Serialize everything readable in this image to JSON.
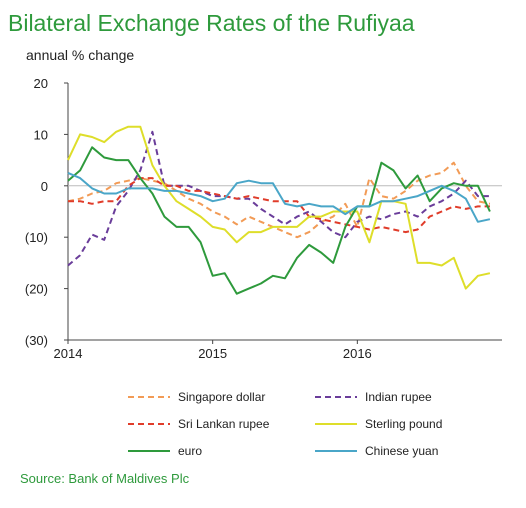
{
  "chart_data": {
    "type": "line",
    "title": "Bilateral Exchange Rates of the Rufiyaa",
    "ylabel": "annual % change",
    "ylim": [
      -30,
      20
    ],
    "yticks": [
      20,
      10,
      0,
      -10,
      -20,
      -30
    ],
    "ytick_labels": [
      "20",
      "10",
      "0",
      "(10)",
      "(20)",
      "(30)"
    ],
    "xlim": [
      2014,
      2017
    ],
    "xticks": [
      2014,
      2015,
      2016
    ],
    "xtick_labels": [
      "2014",
      "2015",
      "2016"
    ],
    "legend_position": "bottom",
    "grid": false,
    "x": [
      2014.0,
      2014.0833,
      2014.1667,
      2014.25,
      2014.3333,
      2014.4167,
      2014.5,
      2014.5833,
      2014.6667,
      2014.75,
      2014.8333,
      2014.9167,
      2015.0,
      2015.0833,
      2015.1667,
      2015.25,
      2015.3333,
      2015.4167,
      2015.5,
      2015.5833,
      2015.6667,
      2015.75,
      2015.8333,
      2015.9167,
      2016.0,
      2016.0833,
      2016.1667,
      2016.25,
      2016.3333,
      2016.4167,
      2016.5,
      2016.5833,
      2016.6667,
      2016.75,
      2016.8333,
      2016.9167
    ],
    "series": [
      {
        "name": "Singapore dollar",
        "color": "#f29b56",
        "dash": "dashed",
        "values": [
          -3,
          -2.5,
          -1.5,
          -1,
          0.5,
          1,
          1.5,
          1,
          0.5,
          -1,
          -2.5,
          -3.5,
          -5,
          -6,
          -7.5,
          -6,
          -7,
          -8,
          -9,
          -10,
          -9,
          -7,
          -6,
          -3.5,
          -8,
          1.5,
          -2,
          -2.5,
          -1,
          1,
          2,
          2.5,
          4.5,
          0,
          -3,
          -3.5
        ]
      },
      {
        "name": "Indian rupee",
        "color": "#6a3d9a",
        "dash": "dashed",
        "values": [
          -15.5,
          -13.5,
          -9.5,
          -10.5,
          -4,
          -1,
          3,
          10.5,
          0,
          0,
          0,
          -1,
          -2,
          -2,
          -2.5,
          -2.5,
          -4.5,
          -6,
          -7.5,
          -6,
          -5,
          -7,
          -9,
          -10,
          -7,
          -6,
          -6.5,
          -5.5,
          -5,
          -6,
          -4,
          -3,
          -1.5,
          1,
          -2,
          -2
        ]
      },
      {
        "name": "Sri Lankan rupee",
        "color": "#e03c2a",
        "dash": "dashed",
        "values": [
          -3,
          -3,
          -3.5,
          -3,
          -3,
          0,
          1.5,
          1.5,
          0,
          0,
          -1,
          -1,
          -1.5,
          -2,
          -2.5,
          -2,
          -2.5,
          -3,
          -3,
          -3,
          -6,
          -6.5,
          -7,
          -7.5,
          -8,
          -8.5,
          -8,
          -8.5,
          -9,
          -8.5,
          -6,
          -5,
          -4,
          -4.5,
          -4,
          -4
        ]
      },
      {
        "name": "Sterling pound",
        "color": "#dede2a",
        "dash": "solid",
        "values": [
          5,
          10,
          9.5,
          8.5,
          10.5,
          11.5,
          11.5,
          4,
          0,
          -3,
          -4.5,
          -6,
          -8,
          -8.5,
          -11,
          -9,
          -9,
          -8,
          -8,
          -8,
          -6,
          -6,
          -5,
          -5,
          -5,
          -11,
          -3,
          -3,
          -3.5,
          -15,
          -15,
          -15.5,
          -14,
          -20,
          -17.5,
          -17
        ]
      },
      {
        "name": "euro",
        "color": "#2e9a3c",
        "dash": "solid",
        "values": [
          1,
          3,
          7.5,
          5.5,
          5,
          5,
          1.5,
          -1.5,
          -6,
          -8,
          -8,
          -11,
          -17.5,
          -17,
          -21,
          -20,
          -19,
          -17.5,
          -18,
          -14,
          -11.5,
          -13,
          -15,
          -8,
          -4,
          -4,
          4.5,
          3,
          -0.5,
          2,
          -3,
          -0.5,
          0.5,
          0,
          0,
          -5
        ]
      },
      {
        "name": "Chinese yuan",
        "color": "#4aa6c8",
        "dash": "solid",
        "values": [
          2.5,
          1.5,
          -0.5,
          -1.5,
          -1.5,
          -0.5,
          -0.5,
          -0.5,
          -1,
          -1,
          -1.5,
          -2,
          -3,
          -2.5,
          0.5,
          1,
          0.5,
          0.5,
          -3.5,
          -4,
          -3.5,
          -4,
          -4,
          -5.5,
          -4,
          -4,
          -3,
          -3,
          -2.5,
          -2,
          -1,
          0,
          -1,
          -2.5,
          -7,
          -6.5
        ]
      }
    ],
    "source": "Source: Bank of Maldives Plc"
  }
}
